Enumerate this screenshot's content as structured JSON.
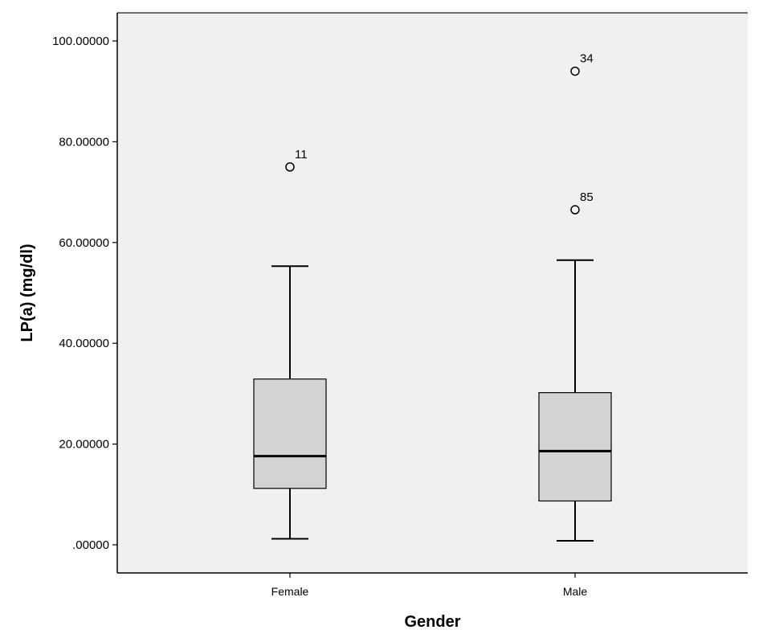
{
  "chart_data": {
    "type": "boxplot",
    "xlabel": "Gender",
    "ylabel": "LP(a) (mg/dl)",
    "ylim": [
      0,
      100
    ],
    "yticks": [
      0,
      20,
      40,
      60,
      80,
      100
    ],
    "ytick_labels": [
      ".00000",
      "20.00000",
      "40.00000",
      "60.00000",
      "80.00000",
      "100.00000"
    ],
    "grid": false,
    "colors": {
      "plot_bg": "#f0f0f0",
      "box_fill": "#d3d3d3",
      "line": "#000000"
    },
    "categories": [
      "Female",
      "Male"
    ],
    "boxes": [
      {
        "category": "Female",
        "whisker_low": 1.2,
        "q1": 11.2,
        "median": 17.6,
        "q3": 32.9,
        "whisker_high": 55.3,
        "outliers": [
          {
            "value": 75.0,
            "label": "11"
          }
        ]
      },
      {
        "category": "Male",
        "whisker_low": 0.8,
        "q1": 8.7,
        "median": 18.6,
        "q3": 30.2,
        "whisker_high": 56.5,
        "outliers": [
          {
            "value": 94.0,
            "label": "34"
          },
          {
            "value": 66.5,
            "label": "85"
          }
        ]
      }
    ]
  }
}
